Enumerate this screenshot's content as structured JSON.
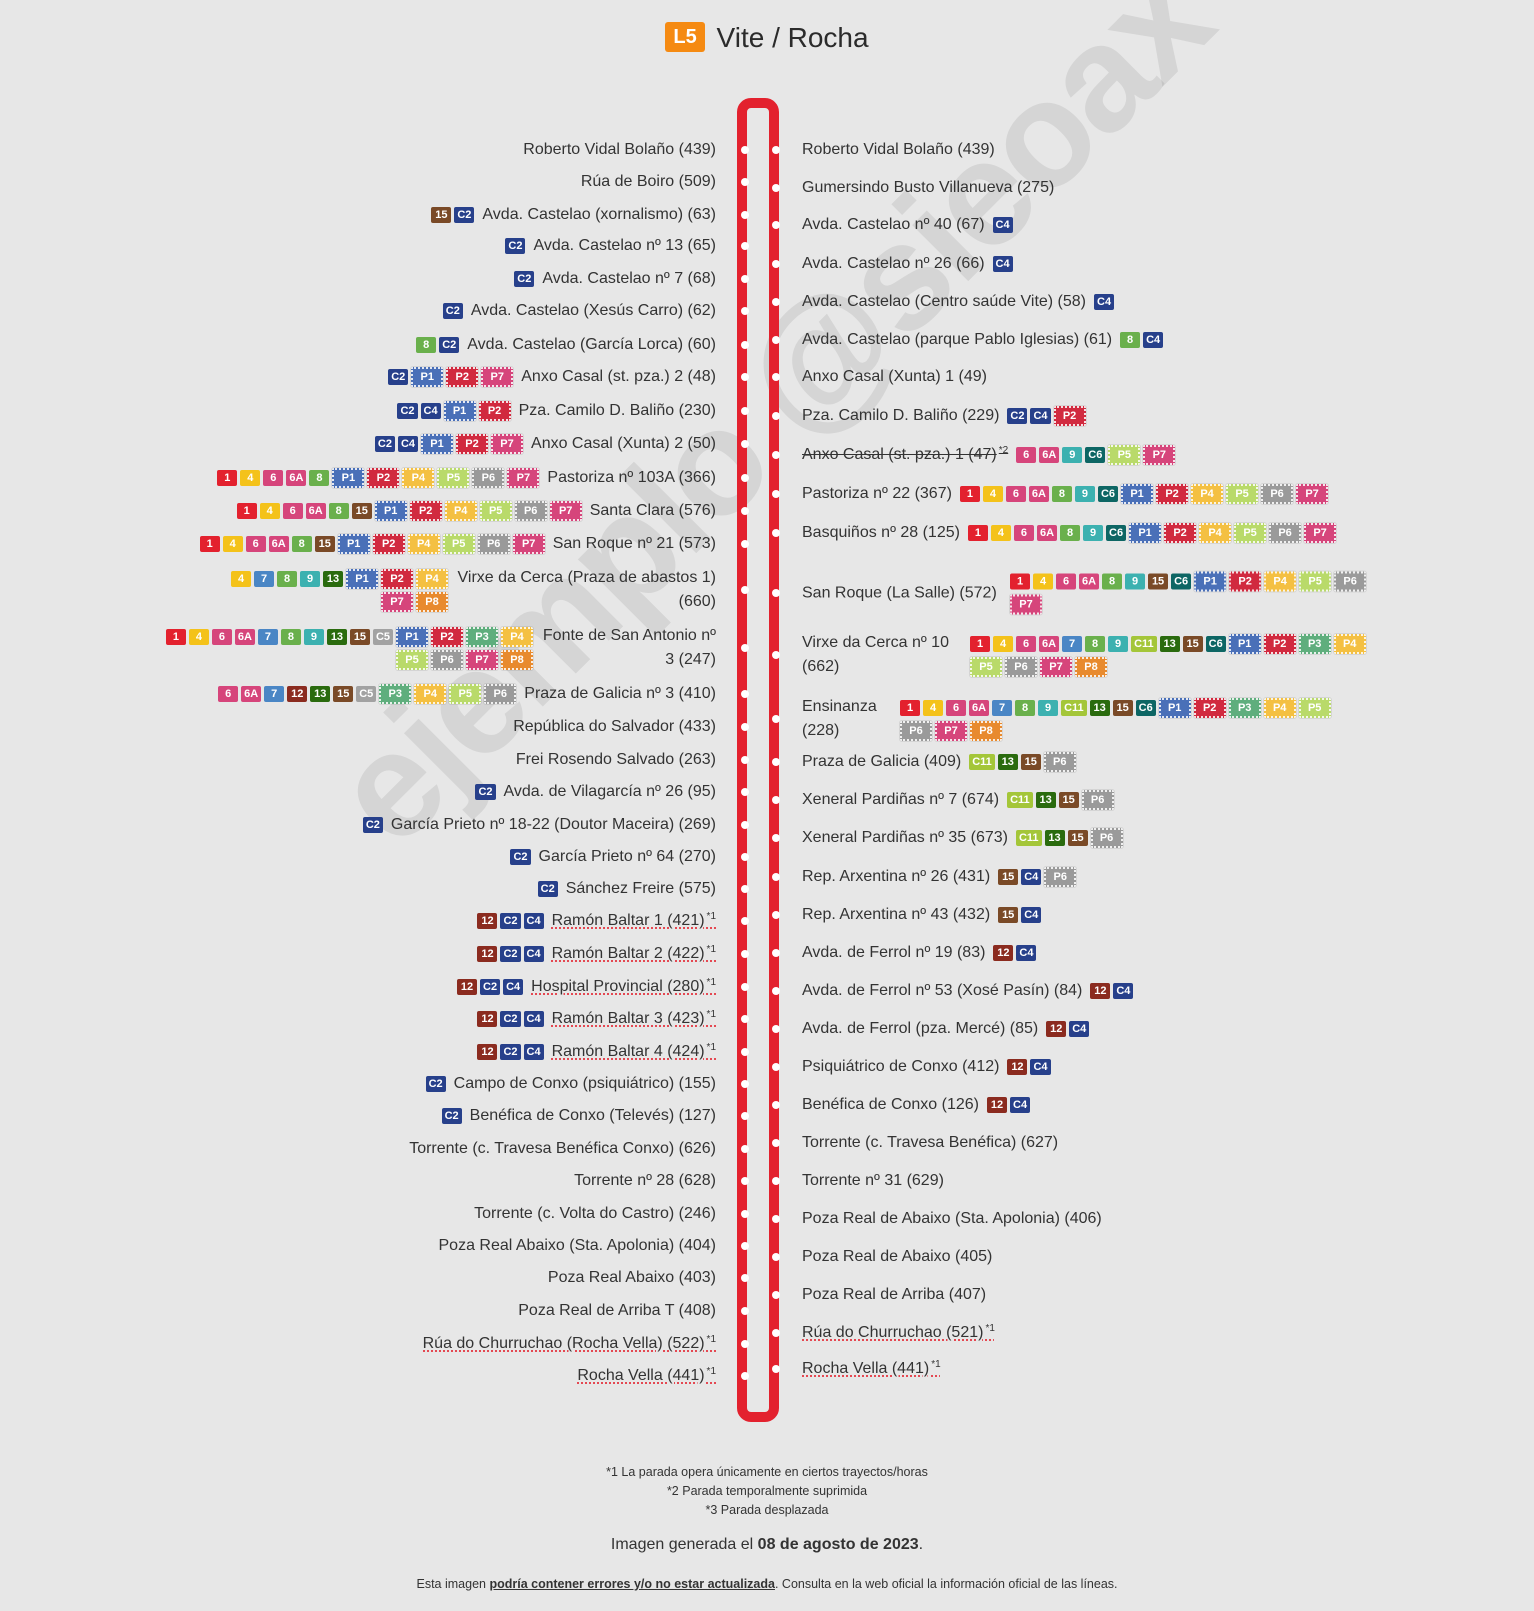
{
  "header": {
    "line_badge": "L5",
    "title": "Vite / Rocha",
    "badge_color": "#f58a12"
  },
  "watermark": "ejemplo @sieoax",
  "colors": {
    "1": "#e3212e",
    "4": "#f4c21a",
    "6": "#d6457b",
    "6A": "#d6457b",
    "7": "#4a86c5",
    "8": "#6ab04c",
    "9": "#3cb1b0",
    "12": "#8b2b1f",
    "13": "#2a6b0e",
    "15": "#7a4a27",
    "C2": "#27408b",
    "C4": "#27408b",
    "C5": "#a2a2a2",
    "C6": "#0d6664",
    "C11": "#a4c639",
    "P1": "#4a70b8",
    "P2": "#d12a3f",
    "P3": "#5fae7d",
    "P4": "#f4c042",
    "P5": "#b9da6a",
    "P6": "#9a9a9a",
    "P7": "#d6457b",
    "P8": "#e88a2e",
    "line": "#e3212e"
  },
  "left_stops": [
    {
      "name": "Roberto Vidal Bolaño (439)",
      "lines": []
    },
    {
      "name": "Rúa de Boiro (509)",
      "lines": []
    },
    {
      "name": "Avda. Castelao (xornalismo) (63)",
      "lines": [
        "15",
        "C2"
      ]
    },
    {
      "name": "Avda. Castelao nº 13 (65)",
      "lines": [
        "C2"
      ]
    },
    {
      "name": "Avda. Castelao nº 7 (68)",
      "lines": [
        "C2"
      ]
    },
    {
      "name": "Avda. Castelao (Xesús Carro) (62)",
      "lines": [
        "C2"
      ]
    },
    {
      "name": "Avda. Castelao (García Lorca) (60)",
      "lines": [
        "8",
        "C2"
      ]
    },
    {
      "name": "Anxo Casal (st. pza.) 2 (48)",
      "lines": [
        "C2",
        "P1",
        "P2",
        "P7"
      ]
    },
    {
      "name": "Pza. Camilo D. Baliño (230)",
      "lines": [
        "C2",
        "C4",
        "P1",
        "P2"
      ]
    },
    {
      "name": "Anxo Casal (Xunta) 2 (50)",
      "lines": [
        "C2",
        "C4",
        "P1",
        "P2",
        "P7"
      ]
    },
    {
      "name": "Pastoriza nº 103A (366)",
      "lines": [
        "1",
        "4",
        "6",
        "6A",
        "8",
        "P1",
        "P2",
        "P4",
        "P5",
        "P6",
        "P7"
      ]
    },
    {
      "name": "Santa Clara (576)",
      "lines": [
        "1",
        "4",
        "6",
        "6A",
        "8",
        "15",
        "P1",
        "P2",
        "P4",
        "P5",
        "P6",
        "P7"
      ]
    },
    {
      "name": "San Roque nº 21 (573)",
      "lines": [
        "1",
        "4",
        "6",
        "6A",
        "8",
        "15",
        "P1",
        "P2",
        "P4",
        "P5",
        "P6",
        "P7"
      ]
    },
    {
      "name": "Virxe da Cerca (Praza de abastos 1) (660)",
      "lines": [
        "4",
        "7",
        "8",
        "9",
        "13",
        "P1",
        "P2",
        "P4",
        "P7",
        "P8"
      ]
    },
    {
      "name": "Fonte de San Antonio nº 3 (247)",
      "lines": [
        "1",
        "4",
        "6",
        "6A",
        "7",
        "8",
        "9",
        "13",
        "15",
        "C5",
        "P1",
        "P2",
        "P3",
        "P4",
        "P5",
        "P6",
        "P7",
        "P8"
      ]
    },
    {
      "name": "Praza de Galicia nº 3 (410)",
      "lines": [
        "6",
        "6A",
        "7",
        "12",
        "13",
        "15",
        "C5",
        "P3",
        "P4",
        "P5",
        "P6"
      ]
    },
    {
      "name": "República do Salvador (433)",
      "lines": []
    },
    {
      "name": "Frei Rosendo Salvado (263)",
      "lines": []
    },
    {
      "name": "Avda. de Vilagarcía nº 26 (95)",
      "lines": [
        "C2"
      ]
    },
    {
      "name": "García Prieto nº 18-22 (Doutor Maceira) (269)",
      "lines": [
        "C2"
      ]
    },
    {
      "name": "García Prieto nº 64 (270)",
      "lines": [
        "C2"
      ]
    },
    {
      "name": "Sánchez Freire (575)",
      "lines": [
        "C2"
      ]
    },
    {
      "name": "Ramón Baltar 1 (421)",
      "note": "*1",
      "lines": [
        "12",
        "C2",
        "C4"
      ]
    },
    {
      "name": "Ramón Baltar 2 (422)",
      "note": "*1",
      "lines": [
        "12",
        "C2",
        "C4"
      ]
    },
    {
      "name": "Hospital Provincial (280)",
      "note": "*1",
      "lines": [
        "12",
        "C2",
        "C4"
      ]
    },
    {
      "name": "Ramón Baltar 3 (423)",
      "note": "*1",
      "lines": [
        "12",
        "C2",
        "C4"
      ]
    },
    {
      "name": "Ramón Baltar 4 (424)",
      "note": "*1",
      "lines": [
        "12",
        "C2",
        "C4"
      ]
    },
    {
      "name": "Campo de Conxo (psiquiátrico) (155)",
      "lines": [
        "C2"
      ]
    },
    {
      "name": "Benéfica de Conxo (Televés) (127)",
      "lines": [
        "C2"
      ]
    },
    {
      "name": "Torrente (c. Travesa Benéfica Conxo) (626)",
      "lines": []
    },
    {
      "name": "Torrente nº 28 (628)",
      "lines": []
    },
    {
      "name": "Torrente (c. Volta do Castro) (246)",
      "lines": []
    },
    {
      "name": "Poza Real Abaixo (Sta. Apolonia) (404)",
      "lines": []
    },
    {
      "name": "Poza Real Abaixo (403)",
      "lines": []
    },
    {
      "name": "Poza Real de Arriba T (408)",
      "lines": []
    },
    {
      "name": "Rúa do Churruchao (Rocha Vella) (522)",
      "note": "*1",
      "lines": []
    },
    {
      "name": "Rocha Vella (441)",
      "note": "*1",
      "lines": []
    }
  ],
  "right_stops": [
    {
      "name": "Roberto Vidal Bolaño (439)",
      "lines": []
    },
    {
      "name": "Gumersindo Busto Villanueva (275)",
      "lines": []
    },
    {
      "name": "Avda. Castelao nº 40 (67)",
      "lines": [
        "C4"
      ]
    },
    {
      "name": "Avda. Castelao nº 26 (66)",
      "lines": [
        "C4"
      ]
    },
    {
      "name": "Avda. Castelao (Centro saúde Vite) (58)",
      "lines": [
        "C4"
      ]
    },
    {
      "name": "Avda. Castelao (parque Pablo Iglesias) (61)",
      "lines": [
        "8",
        "C4"
      ]
    },
    {
      "name": "Anxo Casal (Xunta) 1 (49)",
      "lines": []
    },
    {
      "name": "Pza. Camilo D. Baliño (229)",
      "lines": [
        "C2",
        "C4",
        "P2"
      ]
    },
    {
      "name": "Anxo Casal (st. pza.) 1 (47)",
      "note": "*2",
      "suppressed": true,
      "lines": [
        "6",
        "6A",
        "9",
        "C6",
        "P5",
        "P7"
      ]
    },
    {
      "name": "Pastoriza nº 22 (367)",
      "lines": [
        "1",
        "4",
        "6",
        "6A",
        "8",
        "9",
        "C6",
        "P1",
        "P2",
        "P4",
        "P5",
        "P6",
        "P7"
      ]
    },
    {
      "name": "Basquiños nº 28 (125)",
      "lines": [
        "1",
        "4",
        "6",
        "6A",
        "8",
        "9",
        "C6",
        "P1",
        "P2",
        "P4",
        "P5",
        "P6",
        "P7"
      ]
    },
    {
      "name": "San Roque (La Salle) (572)",
      "lines": [
        "1",
        "4",
        "6",
        "6A",
        "8",
        "9",
        "15",
        "C6",
        "P1",
        "P2",
        "P4",
        "P5",
        "P6",
        "P7"
      ]
    },
    {
      "name": "Virxe da Cerca nº 10 (662)",
      "lines": [
        "1",
        "4",
        "6",
        "6A",
        "7",
        "8",
        "9",
        "C11",
        "13",
        "15",
        "C6",
        "P1",
        "P2",
        "P3",
        "P4",
        "P5",
        "P6",
        "P7",
        "P8"
      ]
    },
    {
      "name": "Ensinanza (228)",
      "lines": [
        "1",
        "4",
        "6",
        "6A",
        "7",
        "8",
        "9",
        "C11",
        "13",
        "15",
        "C6",
        "P1",
        "P2",
        "P3",
        "P4",
        "P5",
        "P6",
        "P7",
        "P8"
      ]
    },
    {
      "name": "Praza de Galicia (409)",
      "lines": [
        "C11",
        "13",
        "15",
        "P6"
      ]
    },
    {
      "name": "Xeneral Pardiñas nº 7 (674)",
      "lines": [
        "C11",
        "13",
        "15",
        "P6"
      ]
    },
    {
      "name": "Xeneral Pardiñas nº 35 (673)",
      "lines": [
        "C11",
        "13",
        "15",
        "P6"
      ]
    },
    {
      "name": "Rep. Arxentina nº 26 (431)",
      "lines": [
        "15",
        "C4",
        "P6"
      ]
    },
    {
      "name": "Rep. Arxentina nº 43 (432)",
      "lines": [
        "15",
        "C4"
      ]
    },
    {
      "name": "Avda. de Ferrol nº 19 (83)",
      "lines": [
        "12",
        "C4"
      ]
    },
    {
      "name": "Avda. de Ferrol nº 53 (Xosé Pasín) (84)",
      "lines": [
        "12",
        "C4"
      ]
    },
    {
      "name": "Avda. de Ferrol (pza. Mercé) (85)",
      "lines": [
        "12",
        "C4"
      ]
    },
    {
      "name": "Psiquiátrico de Conxo (412)",
      "lines": [
        "12",
        "C4"
      ]
    },
    {
      "name": "Benéfica de Conxo (126)",
      "lines": [
        "12",
        "C4"
      ]
    },
    {
      "name": "Torrente (c. Travesa Benéfica) (627)",
      "lines": []
    },
    {
      "name": "Torrente nº 31 (629)",
      "lines": []
    },
    {
      "name": "Poza Real de Abaixo (Sta. Apolonia) (406)",
      "lines": []
    },
    {
      "name": "Poza Real de Abaixo (405)",
      "lines": []
    },
    {
      "name": "Poza Real de Arriba (407)",
      "lines": []
    },
    {
      "name": "Rúa do Churruchao (521)",
      "note": "*1",
      "lines": []
    },
    {
      "name": "Rocha Vella (441)",
      "note": "*1",
      "lines": []
    }
  ],
  "notes": {
    "n1": "*1 La parada opera únicamente en ciertos trayectos/horas",
    "n2": "*2 Parada temporalmente suprimida",
    "n3": "*3 Parada desplazada"
  },
  "generated": {
    "prefix": "Imagen generada el ",
    "date": "08 de agosto de 2023",
    "suffix": "."
  },
  "disclaimer": {
    "prefix": "Esta imagen ",
    "bold": "podría contener errores y/o no estar actualizada",
    "suffix": ". Consulta en la web oficial la información oficial de las líneas."
  }
}
